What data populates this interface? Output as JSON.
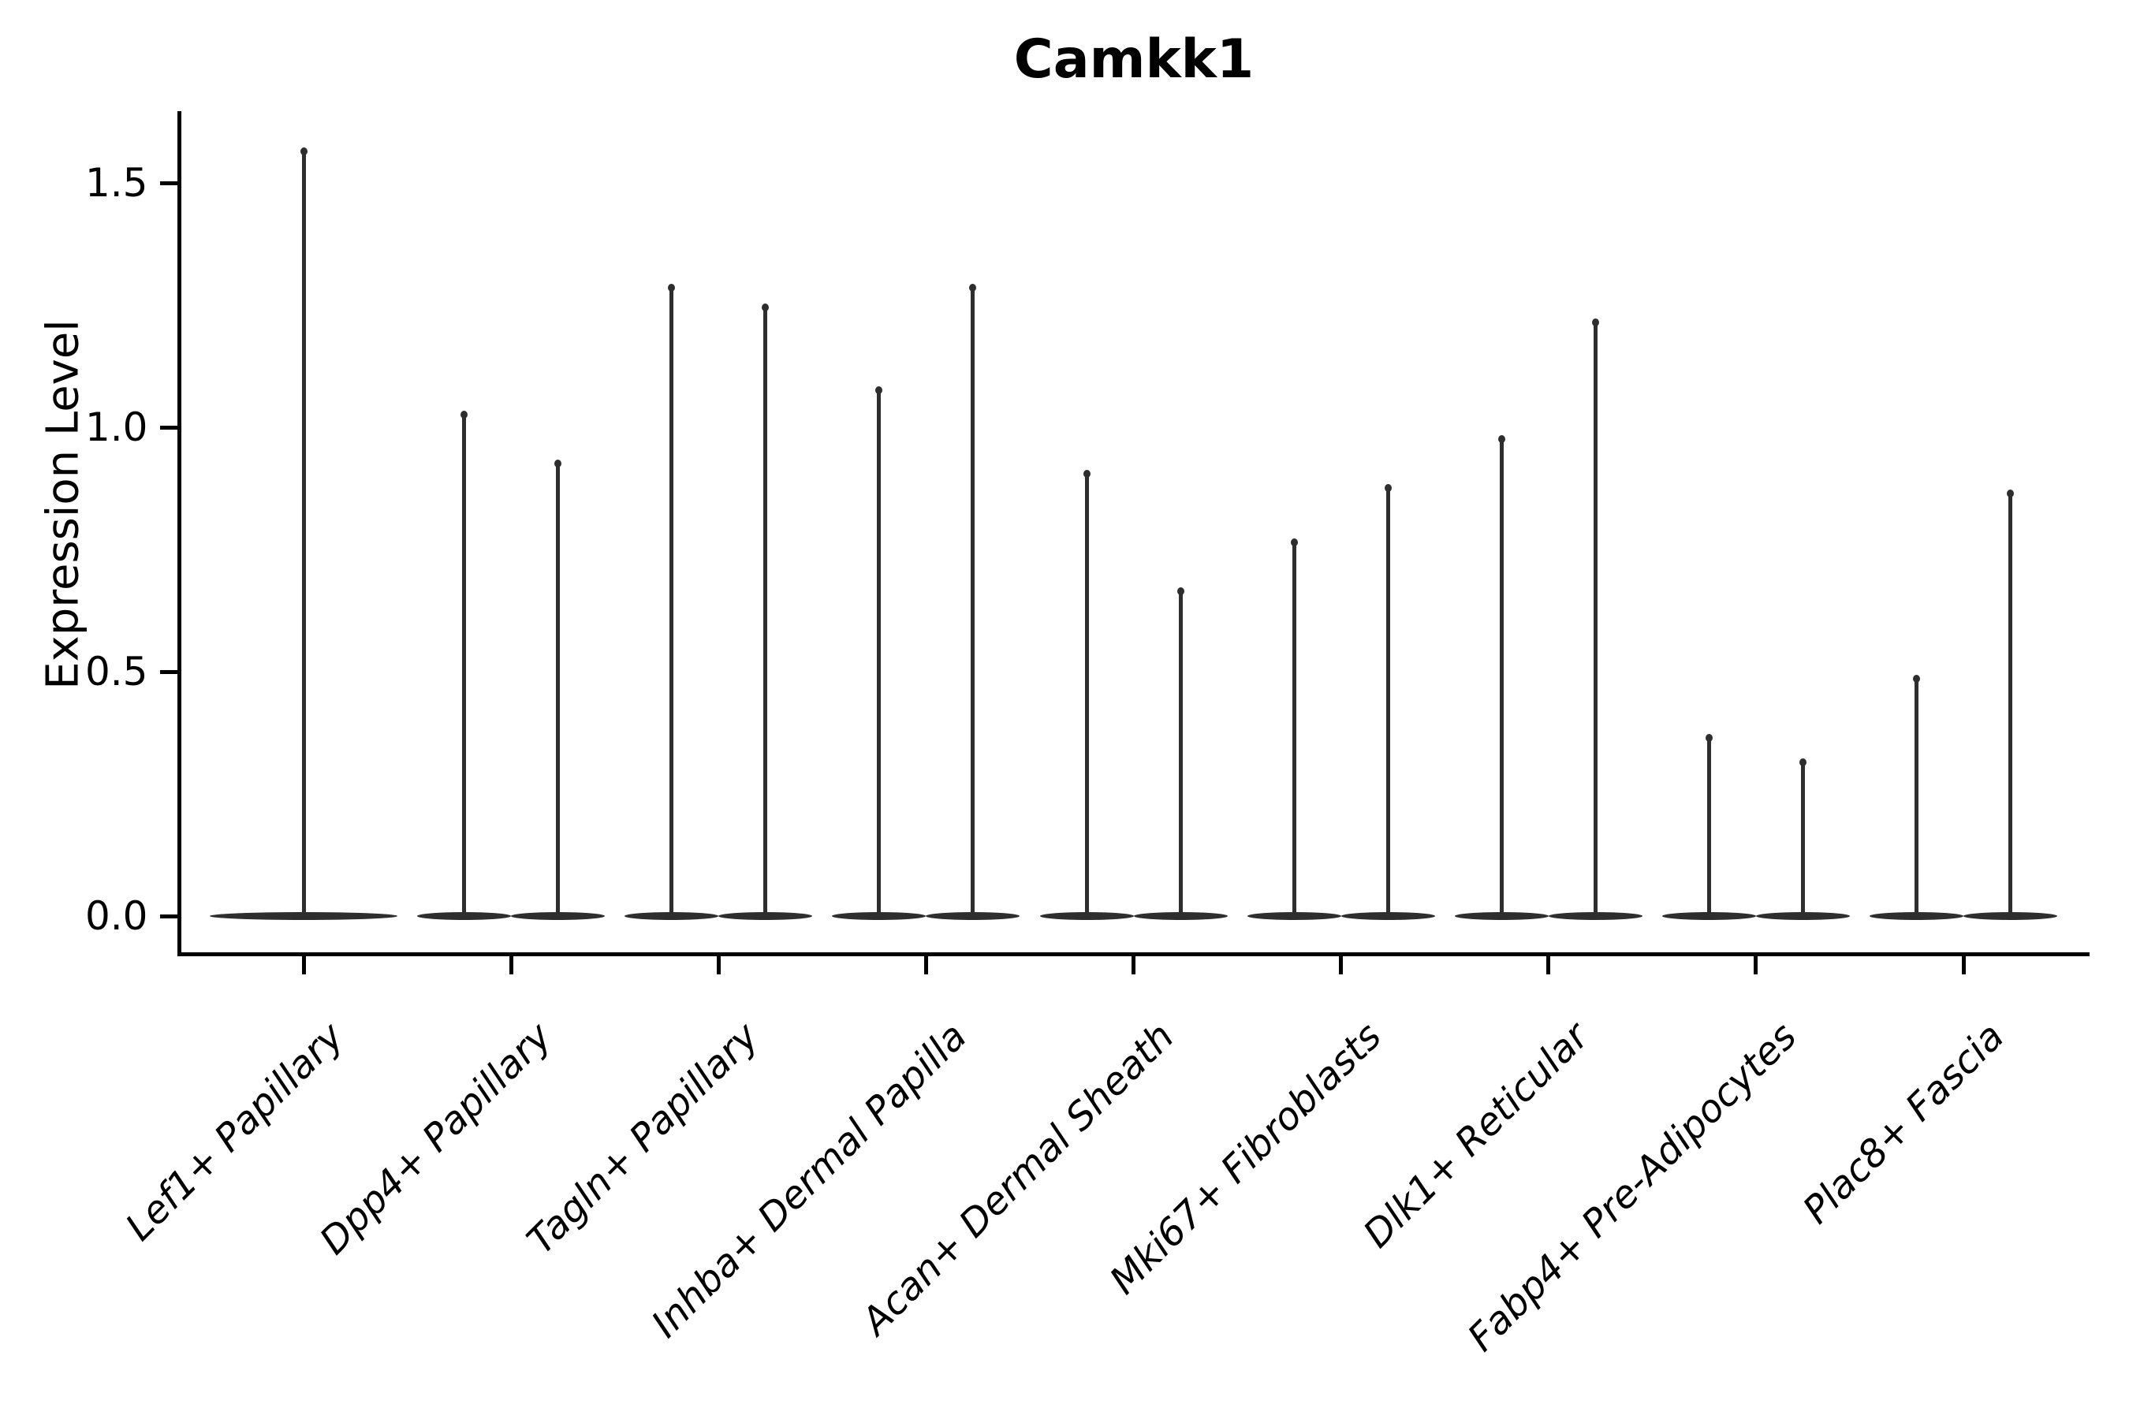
{
  "chart_data": {
    "type": "violin",
    "title": "Camkk1",
    "xlabel": "",
    "ylabel": "Expression Level",
    "yticks": [
      "0.0",
      "0.5",
      "1.0",
      "1.5"
    ],
    "ytick_values": [
      0.0,
      0.5,
      1.0,
      1.5
    ],
    "ylim": [
      -0.08,
      1.64
    ],
    "grid": false,
    "legend": "none",
    "style_notes": "black-and-white violin plot; each violin is a thin spike rising from a wide flat base at 0; categories 2-9 contain two violins each, category 1 contains one",
    "violin_color": "#2e2e2e",
    "axis_color": "#000000",
    "baseline_value": 0.0,
    "categories": [
      {
        "label": "Lef1+ Papillary",
        "max_values": [
          1.57
        ]
      },
      {
        "label": "Dpp4+ Papillary",
        "max_values": [
          1.03,
          0.93
        ]
      },
      {
        "label": "Tagln+ Papillary",
        "max_values": [
          1.29,
          1.25
        ]
      },
      {
        "label": "Inhba+ Dermal Papilla",
        "max_values": [
          1.08,
          1.29
        ]
      },
      {
        "label": "Acan+ Dermal Sheath",
        "max_values": [
          0.91,
          0.67
        ]
      },
      {
        "label": "Mki67+ Fibroblasts",
        "max_values": [
          0.77,
          0.88
        ]
      },
      {
        "label": "Dlk1+ Reticular",
        "max_values": [
          0.98,
          1.22
        ]
      },
      {
        "label": "Fabp4+ Pre-Adipocytes",
        "max_values": [
          0.37,
          0.32
        ]
      },
      {
        "label": "Plac8+ Fascia",
        "max_values": [
          0.49,
          0.87
        ]
      }
    ]
  }
}
